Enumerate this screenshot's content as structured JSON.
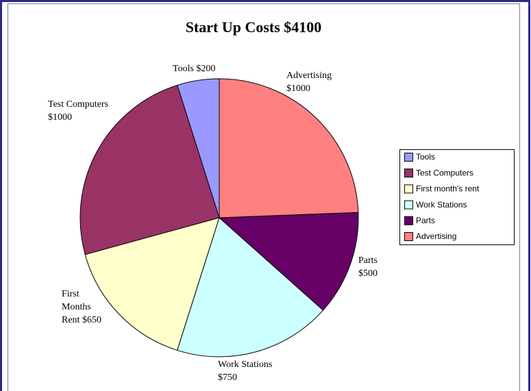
{
  "chart_data": {
    "type": "pie",
    "title": "Start Up Costs $4100",
    "categories": [
      "Tools",
      "Test Computers",
      "First month's rent",
      "Work Stations",
      "Parts",
      "Advertising"
    ],
    "values": [
      200,
      1000,
      650,
      750,
      500,
      1000
    ],
    "value_labels": [
      [
        "Tools $200"
      ],
      [
        "Test Computers",
        "$1000"
      ],
      [
        "First",
        "Months",
        "Rent $650"
      ],
      [
        "Work Stations",
        "$750"
      ],
      [
        "Parts",
        "$500"
      ],
      [
        "Advertising",
        "$1000"
      ]
    ],
    "colors": [
      "#9999ff",
      "#993366",
      "#ffffcc",
      "#ccffff",
      "#660066",
      "#ff8080"
    ],
    "legend": "right"
  }
}
